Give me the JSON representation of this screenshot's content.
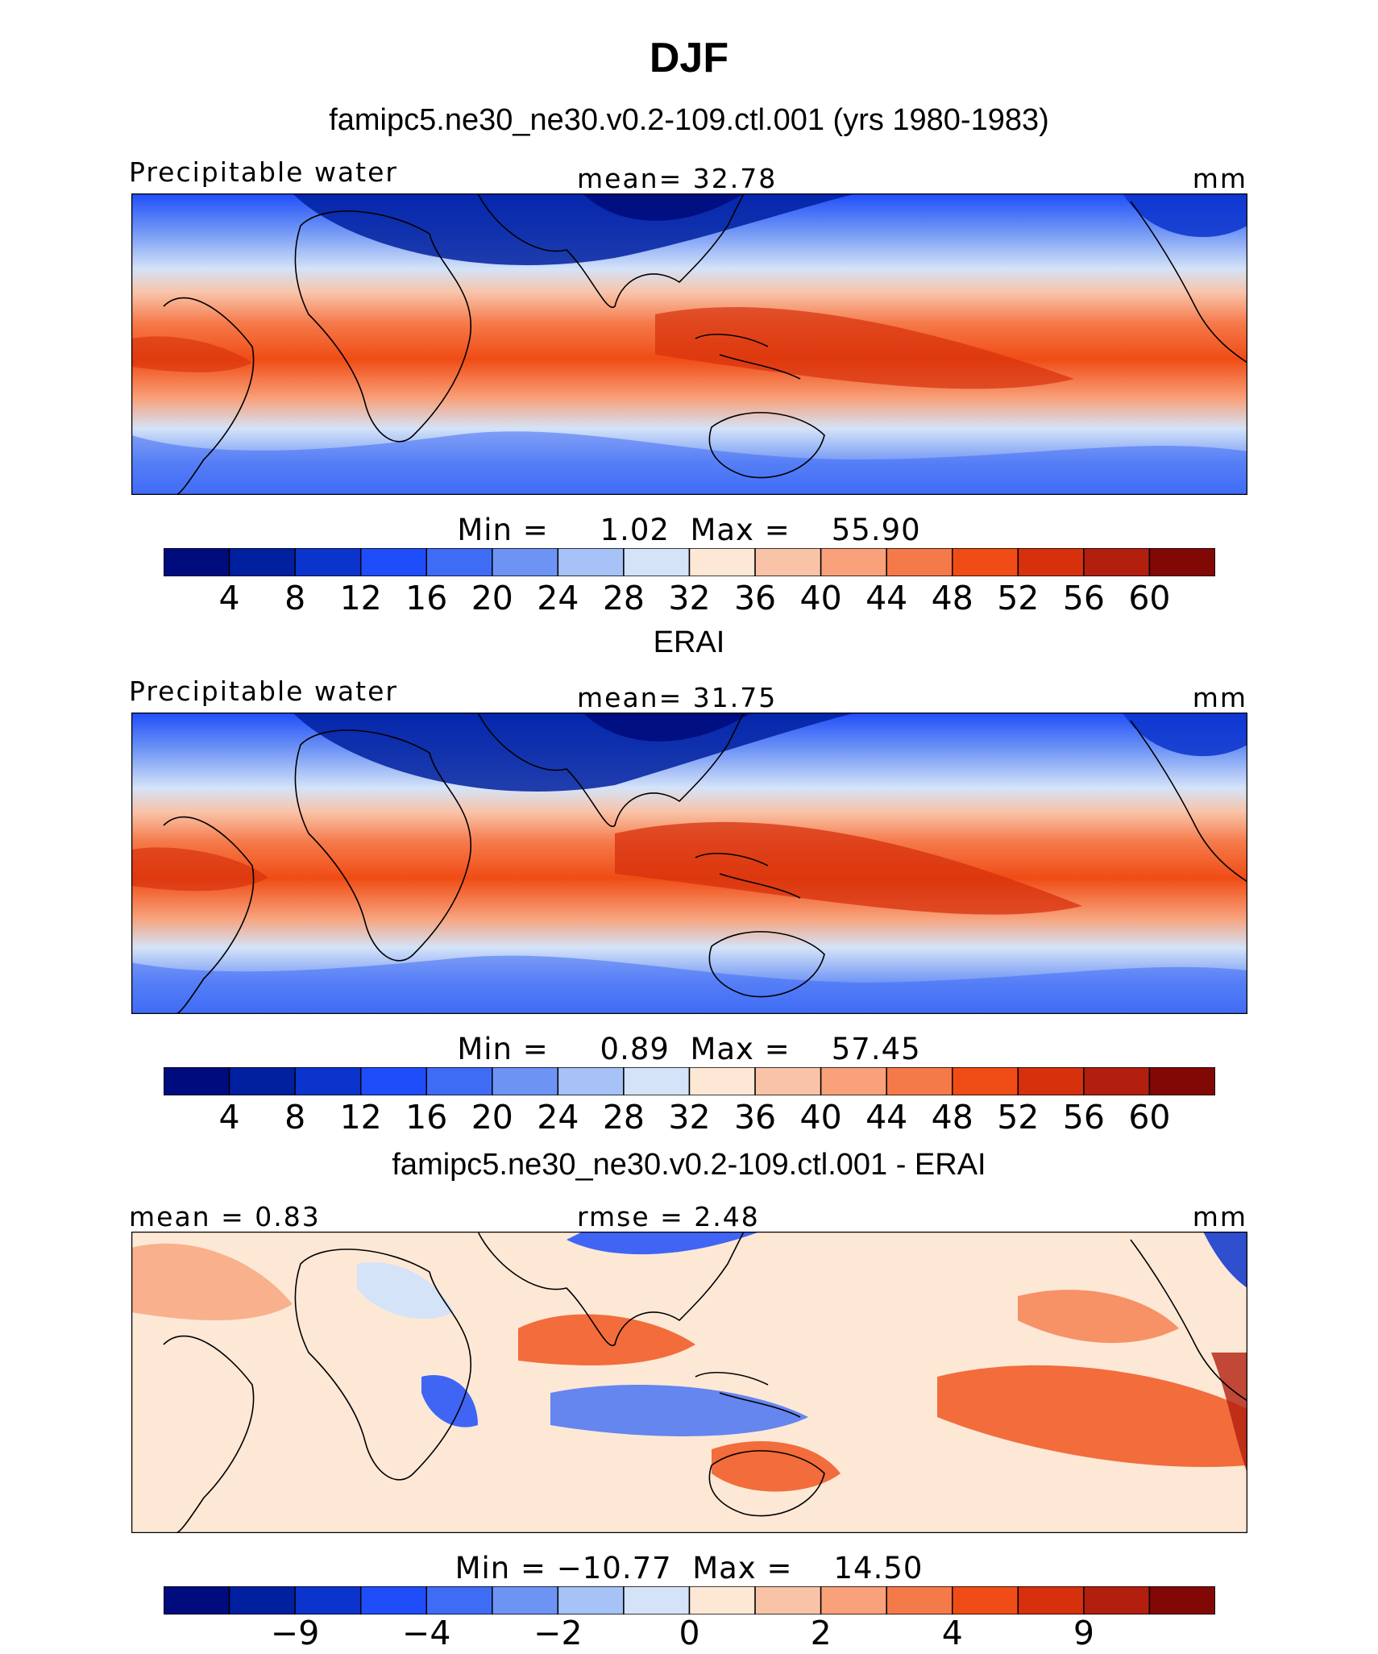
{
  "figure": {
    "title": "DJF",
    "panels": [
      {
        "id": "model",
        "heading": "famipc5.ne30_ne30.v0.2-109.ctl.001 (yrs 1980-1983)",
        "left_label": "Precipitable water",
        "center_label": "mean=   32.78",
        "unit": "mm",
        "minmax": "Min =     1.02  Max =    55.90"
      },
      {
        "id": "obs",
        "heading": "ERAI",
        "left_label": "Precipitable water",
        "center_label": "mean=   31.75",
        "unit": "mm",
        "minmax": "Min =     0.89  Max =    57.45"
      },
      {
        "id": "diff",
        "heading": "famipc5.ne30_ne30.v0.2-109.ctl.001 - ERAI",
        "left_label": "mean =    0.83",
        "center_label": "rmse =    2.48",
        "unit": "mm",
        "minmax": "Min = −10.77  Max =    14.50"
      }
    ]
  },
  "colorbars": {
    "abs_colors": [
      "#000c7d",
      "#0020a0",
      "#0b34cd",
      "#1f4dfa",
      "#3f6cf5",
      "#6d93f5",
      "#a6c2f6",
      "#d4e3f8",
      "#fde8d6",
      "#f9c3a8",
      "#f8a17a",
      "#f57a4a",
      "#f04c15",
      "#d7300c",
      "#b21f0e",
      "#820806"
    ],
    "abs_ticks": [
      "4",
      "8",
      "12",
      "16",
      "20",
      "24",
      "28",
      "32",
      "36",
      "40",
      "44",
      "48",
      "52",
      "56",
      "60"
    ],
    "diff_colors": [
      "#000c7d",
      "#0020a0",
      "#0b34cd",
      "#1f4dfa",
      "#3f6cf5",
      "#6d93f5",
      "#a6c2f6",
      "#d4e3f8",
      "#fde8d6",
      "#f9c3a8",
      "#f8a17a",
      "#f57a4a",
      "#f04c15",
      "#d7300c",
      "#b21f0e",
      "#820806"
    ],
    "diff_ticks": [
      {
        "label": "−9",
        "boundary": 2
      },
      {
        "label": "−4",
        "boundary": 4
      },
      {
        "label": "−2",
        "boundary": 6
      },
      {
        "label": "0",
        "boundary": 8
      },
      {
        "label": "2",
        "boundary": 10
      },
      {
        "label": "4",
        "boundary": 12
      },
      {
        "label": "9",
        "boundary": 14
      }
    ]
  }
}
